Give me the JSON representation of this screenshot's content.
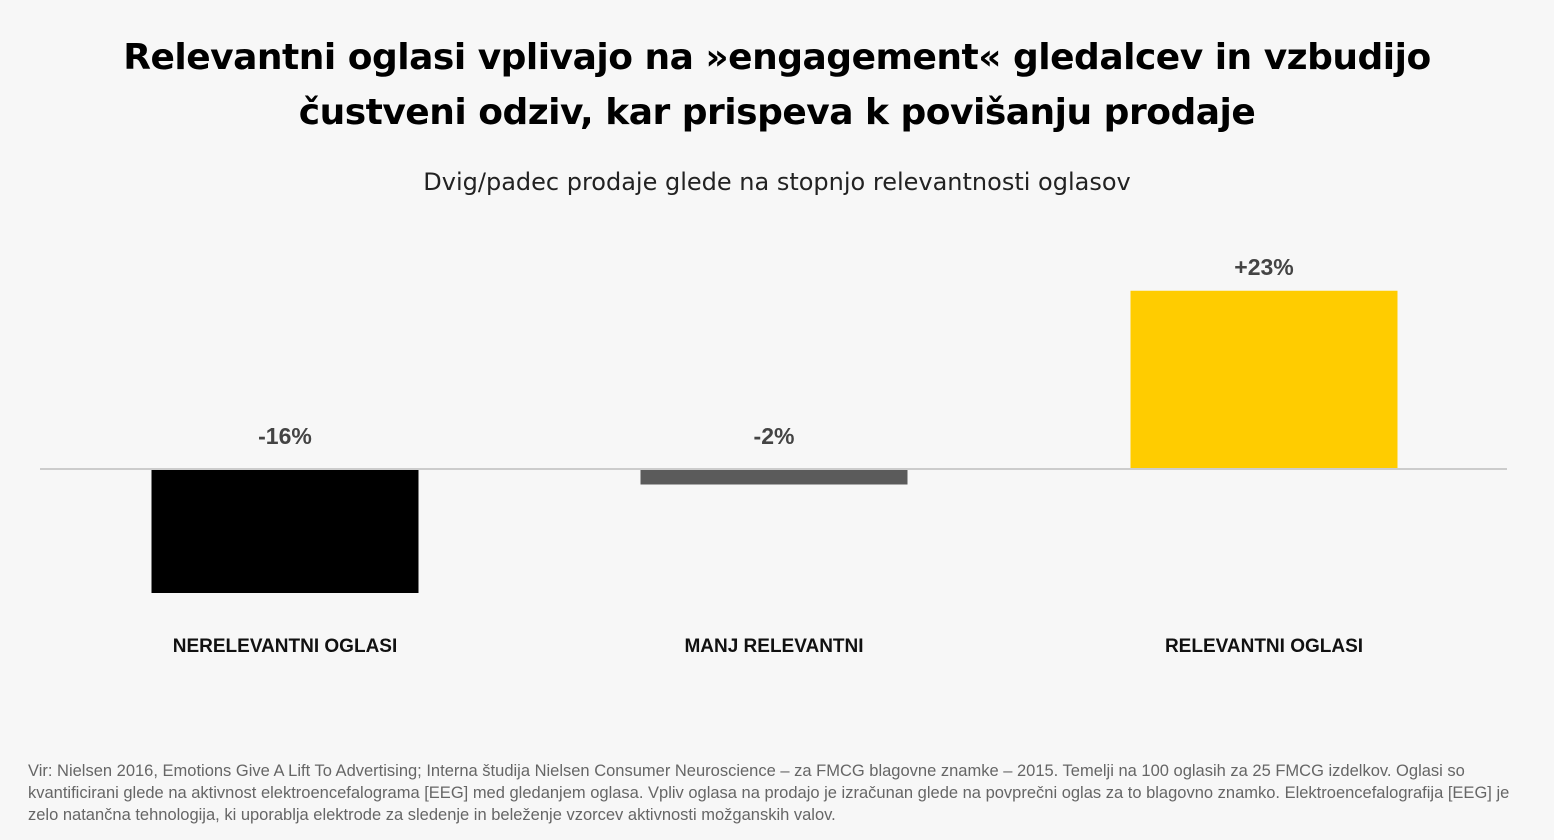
{
  "title_line1": "Relevantni oglasi vplivajo na »engagement« gledalcev in vzbudijo",
  "title_line2": "čustveni odziv, kar prispeva k povišanju prodaje",
  "subtitle": "Dvig/padec prodaje glede na stopnjo relevantnosti oglasov",
  "source": "Vir: Nielsen 2016, Emotions Give A Lift To Advertising; Interna študija Nielsen Consumer Neuroscience – za FMCG blagovne znamke – 2015. Temelji na 100 oglasih za 25 FMCG izdelkov. Oglasi so kvantificirani glede na aktivnost elektroencefalograma [EEG] med gledanjem oglasa. Vpliv oglasa na prodajo je izračunan glede na povprečni oglas za to blagovno znamko. Elektroencefalografija [EEG] je zelo natančna tehnologija, ki uporablja elektrode za sledenje in beleženje vzorcev aktivnosti možganskih valov.",
  "chart_data": {
    "type": "bar",
    "categories": [
      "NERELEVANTNI OGLASI",
      "MANJ RELEVANTNI",
      "RELEVANTNI OGLASI"
    ],
    "values": [
      -16,
      -2,
      23
    ],
    "value_labels": [
      "-16%",
      "-2%",
      "+23%"
    ],
    "colors": [
      "#000000",
      "#5b5b5b",
      "#ffcc00"
    ],
    "baseline_color": "#cccccc",
    "value_label_color": "#444444",
    "unit": "%",
    "grid": false,
    "legend": "none"
  }
}
